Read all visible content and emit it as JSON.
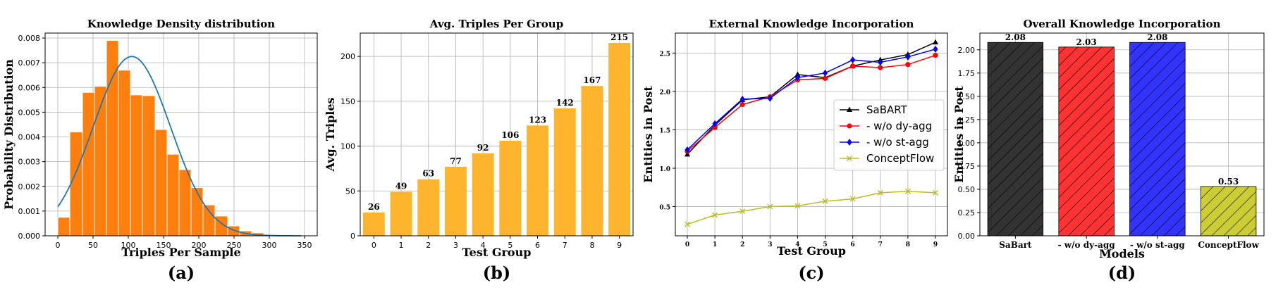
{
  "chart_data": [
    {
      "type": "bar",
      "title": "Knowledge Density distribution",
      "xlabel": "Triples Per Sample",
      "ylabel": "Probability Distribution",
      "panel_label": "(a)",
      "xlim": [
        -18,
        368
      ],
      "ylim": [
        0,
        0.0082
      ],
      "xticks": [
        "0",
        "50",
        "100",
        "150",
        "200",
        "250",
        "300",
        "350"
      ],
      "yticks": [
        "0.000",
        "0.001",
        "0.002",
        "0.003",
        "0.004",
        "0.005",
        "0.006",
        "0.007",
        "0.008"
      ],
      "bin_edges": [
        0,
        17,
        35,
        52,
        69,
        86,
        103,
        120,
        138,
        155,
        172,
        189,
        206,
        223,
        241,
        258,
        275,
        292
      ],
      "values": [
        0.00075,
        0.0042,
        0.0058,
        0.00605,
        0.0079,
        0.0067,
        0.0057,
        0.00567,
        0.0043,
        0.0033,
        0.00268,
        0.00195,
        0.00125,
        0.0008,
        0.0004,
        0.0002,
        0.00012
      ],
      "fit_curve": {
        "type": "normal",
        "mean": 105,
        "sd": 55
      },
      "bar_color": "#ff7f0e",
      "curve_color": "#1f77b4",
      "grid": true
    },
    {
      "type": "bar",
      "title": "Avg. Triples Per Group",
      "xlabel": "Test Group",
      "ylabel": "Avg. Triples",
      "panel_label": "(b)",
      "categories": [
        "0",
        "1",
        "2",
        "3",
        "4",
        "5",
        "6",
        "7",
        "8",
        "9"
      ],
      "values": [
        26,
        49,
        63,
        77,
        92,
        106,
        123,
        142,
        167,
        215
      ],
      "data_labels": [
        "26",
        "49",
        "63",
        "77",
        "92",
        "106",
        "123",
        "142",
        "167",
        "215"
      ],
      "ylim": [
        0,
        226
      ],
      "yticks": [
        "0",
        "50",
        "100",
        "150",
        "200"
      ],
      "bar_color": "#ffb42e",
      "grid": true
    },
    {
      "type": "line",
      "title": "External Knowledge Incorporation",
      "xlabel": "Test Group",
      "ylabel": "Entities in Post",
      "panel_label": "(c)",
      "x": [
        0,
        1,
        2,
        3,
        4,
        5,
        6,
        7,
        8,
        9
      ],
      "xticks": [
        "0",
        "1",
        "2",
        "3",
        "4",
        "5",
        "6",
        "7",
        "8",
        "9"
      ],
      "ylim": [
        0.12,
        2.76
      ],
      "yticks": [
        "0.5",
        "1.0",
        "1.5",
        "2.0",
        "2.5"
      ],
      "legend_position": "center-right",
      "grid": true,
      "series": [
        {
          "name": "SaBART",
          "color": "#000000",
          "marker": "triangle",
          "values": [
            1.18,
            1.56,
            1.89,
            1.93,
            2.22,
            2.18,
            2.33,
            2.41,
            2.48,
            2.64
          ]
        },
        {
          "name": "- w/o dy-agg",
          "color": "#ff0000",
          "marker": "circle",
          "values": [
            1.22,
            1.53,
            1.83,
            1.93,
            2.15,
            2.17,
            2.33,
            2.31,
            2.35,
            2.47
          ]
        },
        {
          "name": "- w/o st-agg",
          "color": "#0000ff",
          "marker": "diamond",
          "values": [
            1.24,
            1.58,
            1.9,
            1.91,
            2.18,
            2.24,
            2.41,
            2.38,
            2.45,
            2.55
          ]
        },
        {
          "name": "ConceptFlow",
          "color": "#bcbd22",
          "marker": "x",
          "values": [
            0.27,
            0.39,
            0.44,
            0.5,
            0.51,
            0.57,
            0.6,
            0.68,
            0.7,
            0.68
          ]
        }
      ]
    },
    {
      "type": "bar",
      "title": "Overall Knowledge Incorporation",
      "xlabel": "Models",
      "ylabel": "Entities in Post",
      "panel_label": "(d)",
      "categories": [
        "SaBart",
        "- w/o dy-agg",
        "- w/o st-agg",
        "ConceptFlow"
      ],
      "values": [
        2.08,
        2.03,
        2.08,
        0.53
      ],
      "data_labels": [
        "2.08",
        "2.03",
        "2.08",
        "0.53"
      ],
      "ylim": [
        0,
        2.18
      ],
      "yticks": [
        "0.00",
        "0.25",
        "0.50",
        "0.75",
        "1.00",
        "1.25",
        "1.50",
        "1.75",
        "2.00"
      ],
      "bar_colors": [
        "#333333",
        "#ff3333",
        "#3333ff",
        "#cccc33"
      ],
      "hatch": "//",
      "grid": true
    }
  ]
}
